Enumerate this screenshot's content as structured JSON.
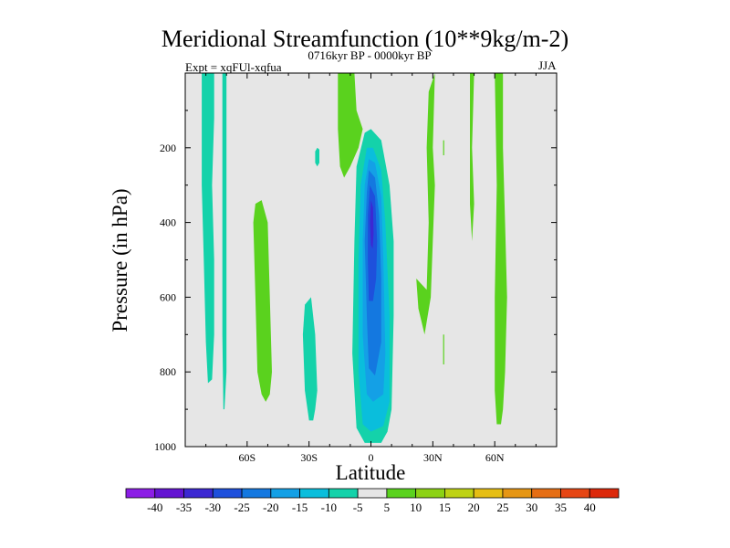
{
  "chart_data": {
    "type": "contour",
    "title": "Meridional Streamfunction (10**9kg/m-2)",
    "subtitle_left": "Expt = xqFUl-xqfua",
    "subtitle_center": "0716kyr BP - 0000kyr BP",
    "subtitle_right": "JJA",
    "xlabel": "Latitude",
    "ylabel": "Pressure (in hPa)",
    "xlim": [
      -90,
      90
    ],
    "ylim": [
      0,
      1000
    ],
    "y_reversed": true,
    "x_ticks": [
      {
        "value": -60,
        "label": "60S"
      },
      {
        "value": -30,
        "label": "30S"
      },
      {
        "value": 0,
        "label": "0"
      },
      {
        "value": 30,
        "label": "30N"
      },
      {
        "value": 60,
        "label": "60N"
      }
    ],
    "y_ticks": [
      {
        "value": 200,
        "label": "200"
      },
      {
        "value": 400,
        "label": "400"
      },
      {
        "value": 600,
        "label": "600"
      },
      {
        "value": 800,
        "label": "800"
      },
      {
        "value": 1000,
        "label": "1000"
      }
    ],
    "background_color": "#e6e6e6",
    "colorbar": {
      "levels": [
        -40,
        -35,
        -30,
        -25,
        -20,
        -15,
        -10,
        -5,
        5,
        10,
        15,
        20,
        25,
        30,
        35,
        40
      ],
      "labels": [
        "-40",
        "-35",
        "-30",
        "-25",
        "-20",
        "-15",
        "-10",
        "-5",
        "5",
        "10",
        "15",
        "20",
        "25",
        "30",
        "35",
        "40"
      ],
      "colors": [
        "#8c1ee6",
        "#6414d2",
        "#3c28d2",
        "#1e50dc",
        "#1478e0",
        "#14a0e6",
        "#0abedc",
        "#14d2aa",
        "#e6e6e6",
        "#5ad21e",
        "#8cd214",
        "#bed214",
        "#e6be14",
        "#e69614",
        "#e66e14",
        "#e64614",
        "#dc280a"
      ]
    },
    "contours": [
      {
        "name": "cyan-band-78S",
        "color": "#14d2aa",
        "points": [
          [
            -82,
            0
          ],
          [
            -76,
            0
          ],
          [
            -76,
            120
          ],
          [
            -77,
            300
          ],
          [
            -76,
            500
          ],
          [
            -76,
            700
          ],
          [
            -77,
            820
          ],
          [
            -79,
            830
          ],
          [
            -80,
            720
          ],
          [
            -81,
            500
          ],
          [
            -82,
            300
          ]
        ]
      },
      {
        "name": "cyan-band-71S",
        "color": "#14d2aa",
        "points": [
          [
            -72,
            0
          ],
          [
            -70,
            0
          ],
          [
            -70,
            300
          ],
          [
            -70,
            600
          ],
          [
            -70,
            800
          ],
          [
            -71,
            900
          ],
          [
            -71.5,
            900
          ],
          [
            -72,
            700
          ],
          [
            -72,
            400
          ]
        ]
      },
      {
        "name": "green-blob-55S",
        "color": "#5ad21e",
        "points": [
          [
            -56,
            350
          ],
          [
            -53,
            340
          ],
          [
            -50,
            400
          ],
          [
            -49,
            600
          ],
          [
            -48,
            800
          ],
          [
            -49,
            860
          ],
          [
            -51,
            880
          ],
          [
            -53,
            860
          ],
          [
            -55,
            800
          ],
          [
            -56,
            600
          ],
          [
            -57,
            400
          ]
        ]
      },
      {
        "name": "cyan-blob-30S",
        "color": "#14d2aa",
        "points": [
          [
            -32,
            620
          ],
          [
            -29,
            600
          ],
          [
            -27,
            700
          ],
          [
            -26,
            850
          ],
          [
            -27,
            900
          ],
          [
            -28,
            930
          ],
          [
            -30,
            930
          ],
          [
            -32,
            850
          ],
          [
            -33,
            700
          ]
        ]
      },
      {
        "name": "cyan-dot-26S",
        "color": "#14d2aa",
        "points": [
          [
            -26,
            200
          ],
          [
            -25,
            205
          ],
          [
            -25,
            240
          ],
          [
            -26,
            250
          ],
          [
            -27,
            240
          ],
          [
            -27,
            210
          ]
        ]
      },
      {
        "name": "green-band-10S",
        "color": "#5ad21e",
        "points": [
          [
            -16,
            0
          ],
          [
            -8,
            0
          ],
          [
            -7,
            100
          ],
          [
            -4,
            150
          ],
          [
            -6,
            200
          ],
          [
            -10,
            250
          ],
          [
            -13,
            280
          ],
          [
            -15,
            250
          ],
          [
            -16,
            150
          ]
        ]
      },
      {
        "name": "level-minus-5",
        "color": "#14d2aa",
        "points": [
          [
            -3,
            160
          ],
          [
            0,
            150
          ],
          [
            5,
            180
          ],
          [
            9,
            300
          ],
          [
            11,
            450
          ],
          [
            11,
            650
          ],
          [
            10,
            900
          ],
          [
            8,
            960
          ],
          [
            5,
            990
          ],
          [
            -3,
            990
          ],
          [
            -7,
            950
          ],
          [
            -9,
            750
          ],
          [
            -8,
            450
          ],
          [
            -7,
            250
          ]
        ]
      },
      {
        "name": "level-minus-10",
        "color": "#0abedc",
        "points": [
          [
            -2,
            200
          ],
          [
            1,
            200
          ],
          [
            5,
            260
          ],
          [
            7,
            400
          ],
          [
            9,
            650
          ],
          [
            9,
            880
          ],
          [
            6,
            945
          ],
          [
            0,
            960
          ],
          [
            -4,
            940
          ],
          [
            -6,
            800
          ],
          [
            -6,
            500
          ],
          [
            -5,
            300
          ]
        ]
      },
      {
        "name": "level-minus-15",
        "color": "#14a0e6",
        "points": [
          [
            -1,
            230
          ],
          [
            2,
            240
          ],
          [
            5,
            330
          ],
          [
            6,
            500
          ],
          [
            7,
            750
          ],
          [
            6,
            860
          ],
          [
            1,
            880
          ],
          [
            -2,
            860
          ],
          [
            -4,
            700
          ],
          [
            -4,
            450
          ],
          [
            -3,
            300
          ]
        ]
      },
      {
        "name": "level-minus-20",
        "color": "#1478e0",
        "points": [
          [
            -1,
            260
          ],
          [
            2,
            280
          ],
          [
            4,
            380
          ],
          [
            5,
            550
          ],
          [
            5,
            720
          ],
          [
            2,
            810
          ],
          [
            -1,
            790
          ],
          [
            -2,
            650
          ],
          [
            -3,
            450
          ],
          [
            -2,
            320
          ]
        ]
      },
      {
        "name": "level-minus-25",
        "color": "#1e50dc",
        "points": [
          [
            -0.5,
            300
          ],
          [
            2,
            330
          ],
          [
            3,
            450
          ],
          [
            2.5,
            550
          ],
          [
            1,
            610
          ],
          [
            -1,
            610
          ],
          [
            -1.5,
            500
          ],
          [
            -1.5,
            380
          ]
        ]
      },
      {
        "name": "level-minus-30",
        "color": "#3c28d2",
        "points": [
          [
            0,
            340
          ],
          [
            1,
            360
          ],
          [
            1.3,
            430
          ],
          [
            0.8,
            470
          ],
          [
            0,
            460
          ],
          [
            -0.5,
            400
          ]
        ]
      },
      {
        "name": "green-blob-30N",
        "color": "#5ad21e",
        "points": [
          [
            28,
            50
          ],
          [
            31,
            0
          ],
          [
            30,
            200
          ],
          [
            31,
            300
          ],
          [
            30,
            450
          ],
          [
            29,
            600
          ],
          [
            26,
            700
          ],
          [
            23,
            630
          ],
          [
            22,
            550
          ],
          [
            27,
            580
          ],
          [
            28,
            400
          ],
          [
            27,
            200
          ]
        ]
      },
      {
        "name": "green-line-35N",
        "color": "#5ad21e",
        "points": [
          [
            35,
            180
          ],
          [
            35.5,
            180
          ],
          [
            35.5,
            220
          ],
          [
            35,
            220
          ]
        ]
      },
      {
        "name": "green-line-35N-lower",
        "color": "#5ad21e",
        "points": [
          [
            35,
            700
          ],
          [
            35.5,
            700
          ],
          [
            35.5,
            780
          ],
          [
            35,
            780
          ]
        ]
      },
      {
        "name": "green-line-49N",
        "color": "#5ad21e",
        "points": [
          [
            48,
            0
          ],
          [
            50,
            0
          ],
          [
            49,
            200
          ],
          [
            50,
            350
          ],
          [
            49,
            450
          ],
          [
            48,
            350
          ],
          [
            48,
            200
          ]
        ]
      },
      {
        "name": "green-band-63N",
        "color": "#5ad21e",
        "points": [
          [
            60,
            0
          ],
          [
            64,
            0
          ],
          [
            64,
            200
          ],
          [
            65,
            400
          ],
          [
            66,
            600
          ],
          [
            65,
            800
          ],
          [
            64,
            900
          ],
          [
            63,
            940
          ],
          [
            61,
            940
          ],
          [
            60,
            850
          ],
          [
            60,
            600
          ],
          [
            61,
            300
          ]
        ]
      }
    ]
  }
}
